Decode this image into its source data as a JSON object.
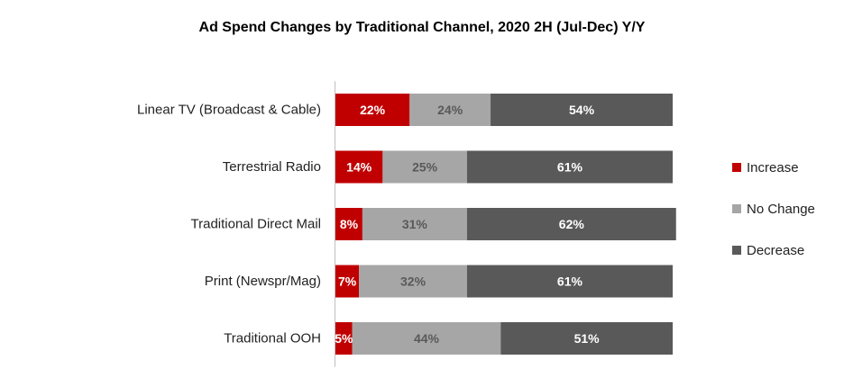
{
  "chart_data": {
    "type": "bar",
    "orientation": "horizontal",
    "stacked": true,
    "title": "Ad Spend Changes by Traditional Channel, 2020 2H (Jul-Dec) Y/Y",
    "categories": [
      "Linear TV (Broadcast & Cable)",
      "Terrestrial Radio",
      "Traditional Direct Mail",
      "Print (Newspr/Mag)",
      "Traditional OOH"
    ],
    "series": [
      {
        "name": "Increase",
        "values": [
          22,
          14,
          8,
          7,
          5
        ],
        "labels": [
          "22%",
          "14%",
          "8%",
          "7%",
          "5%"
        ],
        "color": "#c00000",
        "label_color": "#ffffff"
      },
      {
        "name": "No Change",
        "values": [
          24,
          25,
          31,
          32,
          44
        ],
        "labels": [
          "24%",
          "25%",
          "31%",
          "32%",
          "44%"
        ],
        "color": "#a6a6a6",
        "label_color": "#595959"
      },
      {
        "name": "Decrease",
        "values": [
          54,
          61,
          62,
          61,
          51
        ],
        "labels": [
          "54%",
          "61%",
          "62%",
          "61%",
          "51%"
        ],
        "color": "#595959",
        "label_color": "#ffffff"
      }
    ],
    "xlim": [
      0,
      100
    ],
    "grid": false,
    "legend_position": "right"
  }
}
